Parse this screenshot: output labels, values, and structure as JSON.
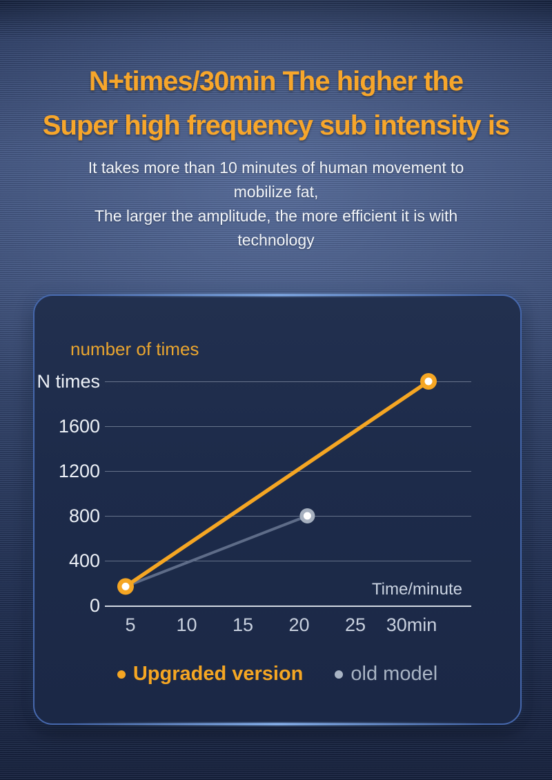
{
  "page": {
    "title_line1": "N+times/30min The higher the",
    "title_line2": "Super high frequency sub intensity is",
    "subtitle_lines": [
      "It takes more than 10 minutes of human movement to",
      "mobilize fat,",
      "The larger the amplitude, the more efficient it is with",
      "technology"
    ]
  },
  "colors": {
    "heading_orange": "#F7A62B",
    "accent_orange": "#F5A623",
    "old_model_gray": "#A9B4C4",
    "card_background": "#1D2B4A",
    "background_blue": "#3B4D76"
  },
  "chart_data": {
    "type": "line",
    "title": "number of times",
    "ylabel": "number of times",
    "xlabel": "Time/minute",
    "x_tick_labels": [
      "5",
      "10",
      "15",
      "20",
      "25",
      "30min"
    ],
    "y_tick_labels": [
      "N times",
      "1600",
      "1200",
      "800",
      "400",
      "0"
    ],
    "y_tick_values": [
      2000,
      1600,
      1200,
      800,
      400,
      0
    ],
    "xlim": [
      5,
      30
    ],
    "ylim": [
      0,
      2000
    ],
    "grid": true,
    "legend_position": "bottom-center",
    "series": [
      {
        "name": "Upgraded version",
        "color": "#F5A623",
        "marker_ring": "#F5A623",
        "marker_center": "#FFFFFF",
        "points": [
          [
            5,
            170
          ],
          [
            30,
            2000
          ]
        ]
      },
      {
        "name": "old model",
        "color": "#5E6C88",
        "marker_ring": "#A6B0BF",
        "marker_center": "#FFFFFF",
        "points": [
          [
            5,
            170
          ],
          [
            20,
            800
          ]
        ]
      }
    ],
    "legend": [
      {
        "label": "Upgraded version",
        "color": "#F5A623"
      },
      {
        "label": "old model",
        "color": "#A9B4C4"
      }
    ]
  }
}
